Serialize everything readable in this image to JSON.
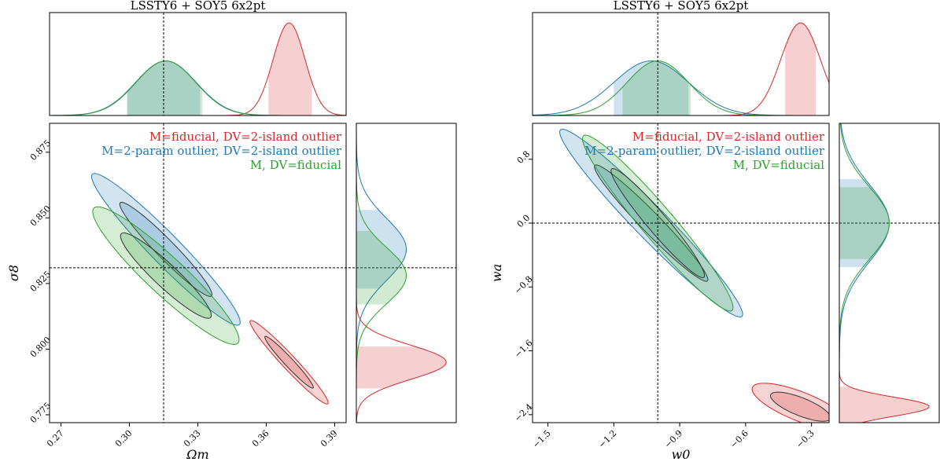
{
  "colors": {
    "red": "#d62728",
    "blue": "#1f77b4",
    "green": "#2ca02c"
  },
  "chart_data": [
    {
      "type": "corner",
      "title": "LSSTY6 + SOY5 6x2pt",
      "xlabel": "Ωm",
      "ylabel": "σ8",
      "xlim": [
        0.265,
        0.395
      ],
      "ylim": [
        0.772,
        0.886
      ],
      "xticks": [
        0.27,
        0.3,
        0.33,
        0.36,
        0.39
      ],
      "xtick_labels": [
        "0.27",
        "0.30",
        "0.33",
        "0.36",
        "0.39"
      ],
      "yticks": [
        0.775,
        0.8,
        0.825,
        0.85,
        0.875
      ],
      "ytick_labels": [
        "0.775",
        "0.800",
        "0.825",
        "0.850",
        "0.875"
      ],
      "reference": {
        "x": 0.315,
        "y": 0.831
      },
      "legend_position": "top-right",
      "series": [
        {
          "name": "M=fiducial, DV=2-island outlier",
          "color": "red",
          "center": [
            0.37,
            0.795
          ],
          "sigma_x": 0.007,
          "sigma_y": 0.0065,
          "rho": -0.97,
          "x_interval": [
            0.361,
            0.38
          ],
          "y_interval": [
            0.785,
            0.801
          ]
        },
        {
          "name": "M=2-param outlier, DV=2-island outlier",
          "color": "blue",
          "center": [
            0.316,
            0.838
          ],
          "sigma_x": 0.0133,
          "sigma_y": 0.0118,
          "rho": -0.96,
          "x_interval": [
            0.299,
            0.331
          ],
          "y_interval": [
            0.823,
            0.853
          ]
        },
        {
          "name": "M, DV=fiducial",
          "color": "green",
          "center": [
            0.316,
            0.828
          ],
          "sigma_x": 0.0131,
          "sigma_y": 0.0107,
          "rho": -0.93,
          "x_interval": [
            0.299,
            0.332
          ],
          "y_interval": [
            0.817,
            0.845
          ]
        }
      ]
    },
    {
      "type": "corner",
      "title": "LSSTY6 + SOY5 6x2pt",
      "xlabel": "w0",
      "ylabel": "wa",
      "xlim": [
        -1.57,
        -0.22
      ],
      "ylim": [
        -2.5,
        1.25
      ],
      "xticks": [
        -1.5,
        -1.2,
        -0.9,
        -0.6,
        -0.3
      ],
      "xtick_labels": [
        "−1.5",
        "−1.2",
        "−0.9",
        "−0.6",
        "−0.3"
      ],
      "yticks": [
        -2.4,
        -1.6,
        -0.8,
        0.0,
        0.8
      ],
      "ytick_labels": [
        "−2.4",
        "−1.6",
        "−0.8",
        "0.0",
        "0.8"
      ],
      "reference": {
        "x": -1.0,
        "y": 0.0
      },
      "legend_position": "top-right",
      "series": [
        {
          "name": "M=fiducial, DV=2-island outlier",
          "color": "red",
          "center": [
            -0.35,
            -2.3
          ],
          "sigma_x": 0.09,
          "sigma_y": 0.12,
          "rho": -0.75,
          "x_interval": [
            -0.42,
            -0.28
          ],
          "y_interval": [
            -2.5,
            -2.05
          ]
        },
        {
          "name": "M=2-param outlier, DV=2-island outlier",
          "color": "blue",
          "center": [
            -1.03,
            0.0
          ],
          "sigma_x": 0.17,
          "sigma_y": 0.48,
          "rho": -0.97,
          "x_interval": [
            -1.2,
            -0.86
          ],
          "y_interval": [
            -0.55,
            0.55
          ]
        },
        {
          "name": "M, DV=fiducial",
          "color": "green",
          "center": [
            -1.0,
            0.0
          ],
          "sigma_x": 0.14,
          "sigma_y": 0.45,
          "rho": -0.96,
          "x_interval": [
            -1.16,
            -0.85
          ],
          "y_interval": [
            -0.45,
            0.45
          ]
        }
      ]
    }
  ]
}
